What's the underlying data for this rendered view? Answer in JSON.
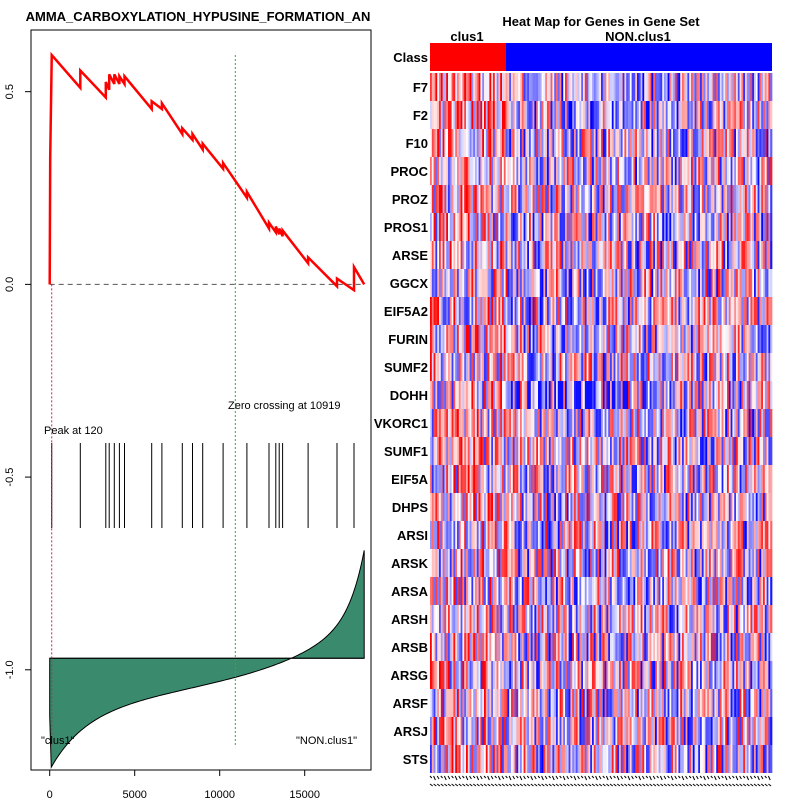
{
  "chart_data": [
    {
      "type": "line",
      "title": "REACTOME_GAMMA_CARBOXYLATION_HYPUSINE_FORMATION_AN",
      "visible_title": "AMMA_CARBOXYLATION_HYPUSINE_FORMATION_AN",
      "xlabel": "",
      "ylabel": "",
      "xlim": [
        -1100,
        18900
      ],
      "ylim": [
        -1.26,
        0.66
      ],
      "x_ticks": [
        0,
        5000,
        10000,
        15000
      ],
      "x_tick_labels": [
        "0",
        "5000",
        "10000",
        "15000"
      ],
      "y_ticks": [
        0.5,
        0.0,
        -0.5,
        -1.0
      ],
      "y_tick_labels": [
        "0.5",
        "0.0",
        "-0.5",
        "-1.0"
      ],
      "grid": false,
      "total_genes": 18500,
      "peak_position": 120,
      "peak_label": "Peak at 120",
      "zero_crossing": 10919,
      "zero_crossing_label": "Zero crossing at 10919",
      "left_class_label": "\"clus1\"",
      "right_class_label": "\"NON.clus1\"",
      "series": [
        {
          "name": "Running enrichment score",
          "color": "#ff0000",
          "points": [
            [
              0,
              0.0
            ],
            [
              30,
              0.33
            ],
            [
              120,
              0.595
            ],
            [
              1800,
              0.51
            ],
            [
              1800,
              0.555
            ],
            [
              3300,
              0.485
            ],
            [
              3300,
              0.525
            ],
            [
              3500,
              0.505
            ],
            [
              3500,
              0.545
            ],
            [
              3800,
              0.52
            ],
            [
              3800,
              0.545
            ],
            [
              4100,
              0.52
            ],
            [
              4100,
              0.54
            ],
            [
              4400,
              0.52
            ],
            [
              4400,
              0.54
            ],
            [
              6000,
              0.455
            ],
            [
              6000,
              0.475
            ],
            [
              6600,
              0.455
            ],
            [
              6600,
              0.47
            ],
            [
              7800,
              0.39
            ],
            [
              7800,
              0.405
            ],
            [
              8400,
              0.375
            ],
            [
              8400,
              0.39
            ],
            [
              9000,
              0.35
            ],
            [
              9000,
              0.365
            ],
            [
              10200,
              0.3
            ],
            [
              10200,
              0.315
            ],
            [
              11600,
              0.225
            ],
            [
              11600,
              0.24
            ],
            [
              12900,
              0.145
            ],
            [
              12900,
              0.16
            ],
            [
              13300,
              0.135
            ],
            [
              13300,
              0.15
            ],
            [
              13500,
              0.13
            ],
            [
              13500,
              0.145
            ],
            [
              13700,
              0.125
            ],
            [
              13700,
              0.14
            ],
            [
              15200,
              0.055
            ],
            [
              15200,
              0.07
            ],
            [
              16900,
              -0.005
            ],
            [
              16900,
              0.015
            ],
            [
              17900,
              -0.015
            ],
            [
              17900,
              0.045
            ],
            [
              18500,
              0.0
            ]
          ]
        }
      ],
      "hit_positions": [
        120,
        1800,
        3300,
        3500,
        3800,
        4100,
        4400,
        6000,
        6600,
        7800,
        8400,
        9000,
        10200,
        11600,
        12900,
        13300,
        13500,
        13700,
        15200,
        16900,
        17900
      ],
      "ranked_metric_fill_color": "#3a8a6e",
      "zero_line_style": "dashed"
    },
    {
      "type": "heatmap",
      "title": "Heat Map for Genes in Gene Set",
      "class_row_label": "Class",
      "classes": [
        {
          "name": "clus1",
          "color": "#ff0000"
        },
        {
          "name": "NON.clus1",
          "color": "#0000ff"
        }
      ],
      "genes": [
        "F7",
        "F2",
        "F10",
        "PROC",
        "PROZ",
        "PROS1",
        "ARSE",
        "GGCX",
        "EIF5A2",
        "FURIN",
        "SUMF2",
        "DOHH",
        "VKORC1",
        "SUMF1",
        "EIF5A",
        "DHPS",
        "ARSI",
        "ARSK",
        "ARSA",
        "ARSH",
        "ARSB",
        "ARSG",
        "ARSF",
        "ARSJ",
        "STS"
      ],
      "colormap": [
        "#0000ff",
        "#ffffff",
        "#ff0000"
      ]
    }
  ]
}
